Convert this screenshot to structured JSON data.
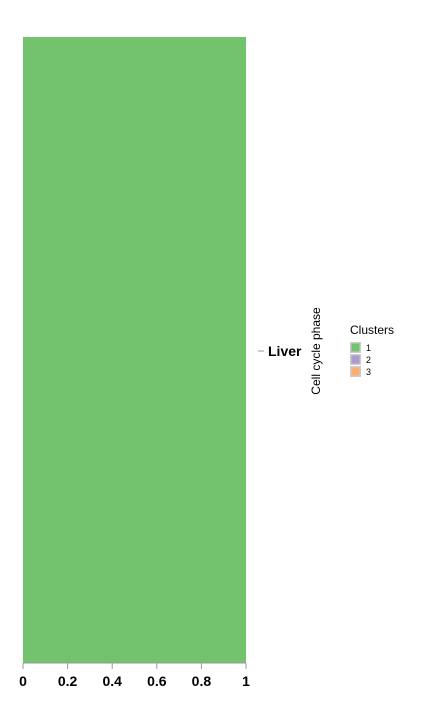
{
  "chart_data": {
    "type": "bar",
    "orientation": "vertical-stacked",
    "categories": [
      "Liver"
    ],
    "series": [
      {
        "name": "1",
        "values": [
          1.0
        ],
        "color": "#73c36e"
      },
      {
        "name": "2",
        "values": [
          0.0
        ],
        "color": "#ab99cf"
      },
      {
        "name": "3",
        "values": [
          0.0
        ],
        "color": "#fdaf72"
      }
    ],
    "x_ticks": [
      "0",
      "0.2",
      "0.4",
      "0.6",
      "0.8",
      "1"
    ],
    "xlim": [
      0,
      1
    ],
    "ylabel": "Cell cycle phase",
    "legend": {
      "title": "Clusters",
      "position": "right",
      "entries": [
        "1",
        "2",
        "3"
      ]
    },
    "grid": false
  }
}
